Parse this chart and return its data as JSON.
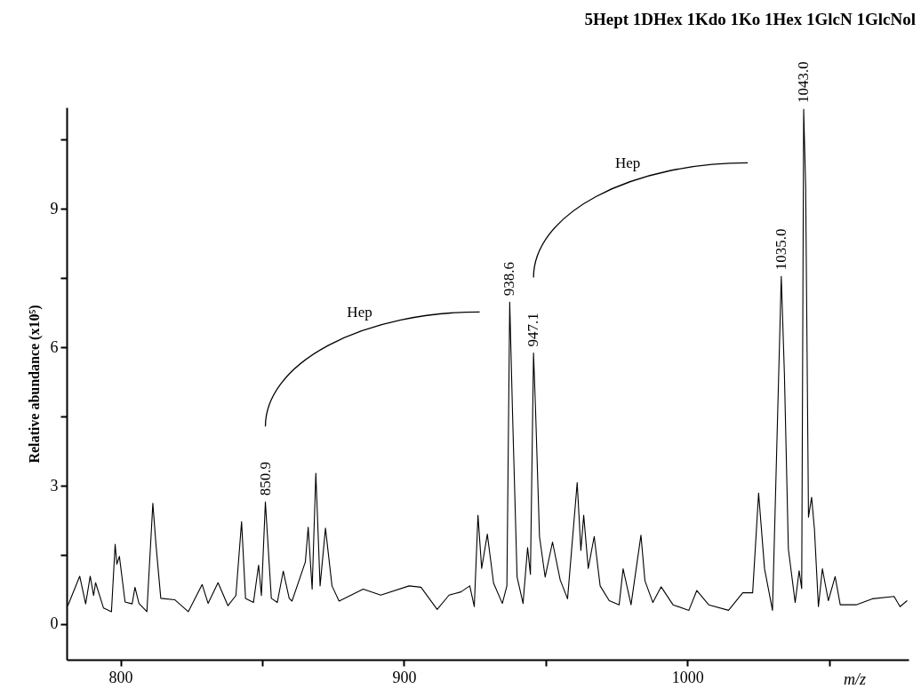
{
  "chart_data": {
    "type": "line",
    "title": "5Hept 1DHex 1Kdo 1Ko 1Hex 1GlcN 1GlcNol",
    "xlabel": "m/z",
    "ylabel": "Relative abundance (x10⁵)",
    "xlim": [
      781,
      1078
    ],
    "xticks": [
      800,
      {
        "value": 850,
        "label": null
      },
      900,
      {
        "value": 950,
        "label": null
      },
      1000,
      {
        "value": 1050,
        "label": null
      }
    ],
    "ylim": [
      -0.77,
      11.2
    ],
    "yticks": [
      0,
      {
        "value": 1.5,
        "label": null
      },
      3,
      {
        "value": 4.5,
        "label": null
      },
      6,
      {
        "value": 7.5,
        "label": null
      },
      9,
      {
        "value": 10.5,
        "label": null
      }
    ],
    "grid": false,
    "series": [
      {
        "color": "#000000",
        "x": [
          781.4,
          785.6,
          787.7,
          789.3,
          790.5,
          791.2,
          794,
          796.8,
          798.1,
          798.7,
          799.6,
          801.6,
          804.1,
          805.1,
          806.5,
          809.3,
          811.4,
          812.5,
          814.2,
          819.1,
          823.9,
          828.8,
          830.9,
          834.4,
          837.9,
          840.7,
          842.7,
          844.1,
          846.9,
          848.7,
          849.7,
          851.1,
          853.2,
          855.3,
          857.4,
          859.5,
          860.5,
          865.2,
          866.2,
          867.6,
          868.9,
          870.4,
          872.3,
          874.6,
          877.1,
          885.6,
          891.8,
          901.8,
          906,
          911.7,
          915.9,
          920.1,
          923.2,
          924.8,
          926.1,
          927.4,
          929.4,
          931.6,
          934.7,
          936.3,
          937.3,
          938.3,
          939.9,
          942,
          943.6,
          944.6,
          945.7,
          946.4,
          947.8,
          949.8,
          952.4,
          955.1,
          957.7,
          961.1,
          962.4,
          963.4,
          965,
          967.1,
          969.2,
          972.4,
          975.9,
          977.3,
          980.1,
          983.6,
          985,
          987.8,
          990.7,
          994.9,
          1000.5,
          1003.3,
          1007.5,
          1014.5,
          1019.5,
          1023,
          1025.1,
          1027.2,
          1030,
          1033.1,
          1034.2,
          1035.6,
          1038,
          1039.4,
          1040.3,
          1041,
          1041.7,
          1042.7,
          1043.8,
          1044.8,
          1046.2,
          1047.6,
          1049.7,
          1052.1,
          1053.9,
          1059.5,
          1065.2,
          1072.9,
          1075,
          1077.5
        ],
        "values": [
          0.4,
          1.04,
          0.44,
          1.04,
          0.62,
          0.9,
          0.35,
          0.27,
          1.73,
          1.3,
          1.47,
          0.48,
          0.44,
          0.8,
          0.45,
          0.27,
          2.62,
          1.73,
          0.56,
          0.53,
          0.27,
          0.86,
          0.45,
          0.9,
          0.4,
          0.62,
          2.22,
          0.56,
          0.47,
          1.28,
          0.62,
          2.65,
          0.56,
          0.47,
          1.15,
          0.56,
          0.5,
          1.35,
          2.1,
          0.76,
          3.27,
          0.83,
          2.08,
          0.83,
          0.5,
          0.76,
          0.63,
          0.83,
          0.8,
          0.32,
          0.63,
          0.7,
          0.83,
          0.38,
          2.36,
          1.21,
          1.95,
          0.89,
          0.45,
          0.83,
          6.98,
          4.55,
          1.02,
          0.45,
          1.66,
          1.08,
          5.88,
          4.67,
          1.9,
          1.02,
          1.78,
          0.96,
          0.55,
          3.07,
          1.6,
          2.36,
          1.21,
          1.9,
          0.83,
          0.51,
          0.42,
          1.2,
          0.42,
          1.93,
          0.94,
          0.47,
          0.81,
          0.42,
          0.3,
          0.73,
          0.42,
          0.3,
          0.68,
          0.68,
          2.84,
          1.2,
          0.3,
          7.54,
          5.43,
          1.63,
          0.47,
          1.16,
          0.77,
          11.16,
          9.48,
          2.32,
          2.75,
          2.06,
          0.38,
          1.2,
          0.51,
          1.03,
          0.42,
          0.42,
          0.55,
          0.6,
          0.38,
          0.51
        ]
      }
    ],
    "annotations": [
      {
        "text": "850.9",
        "x": 851.1,
        "y": 2.65
      },
      {
        "text": "938.6",
        "x": 937.3,
        "y": 6.98
      },
      {
        "text": "947.1",
        "x": 945.7,
        "y": 5.88
      },
      {
        "text": "1035.0",
        "x": 1033.1,
        "y": 7.54
      },
      {
        "text": "1043.0",
        "x": 1041,
        "y": 11.16
      },
      "Hep",
      "Hep"
    ]
  }
}
